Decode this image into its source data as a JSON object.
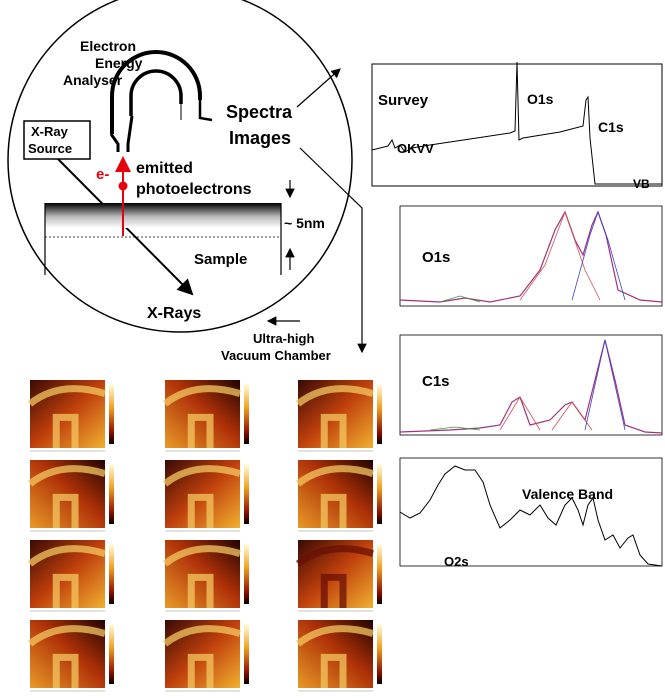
{
  "diagram": {
    "labels": {
      "analyser": [
        "Electron",
        "Energy",
        "Analyser"
      ],
      "xray_source": [
        "X-Ray",
        "Source"
      ],
      "electron": "e-",
      "emitted": [
        "emitted",
        "photoelectrons"
      ],
      "depth": "~ 5nm",
      "sample": "Sample",
      "xrays": "X-Rays",
      "spectra": "Spectra",
      "images": "Images",
      "chamber": [
        "Ultra-high",
        "Vacuum Chamber"
      ]
    },
    "spectra": {
      "survey": {
        "label": "Survey",
        "peaks": [
          "OKVV",
          "O1s",
          "C1s"
        ],
        "vb": "VB"
      },
      "o1s": {
        "label": "O1s"
      },
      "c1s": {
        "label": "C1s"
      },
      "valence": {
        "label": "Valence Band",
        "peak": "O2s"
      }
    }
  },
  "colors": {
    "red": "#e8000f",
    "ink": "#000000"
  }
}
